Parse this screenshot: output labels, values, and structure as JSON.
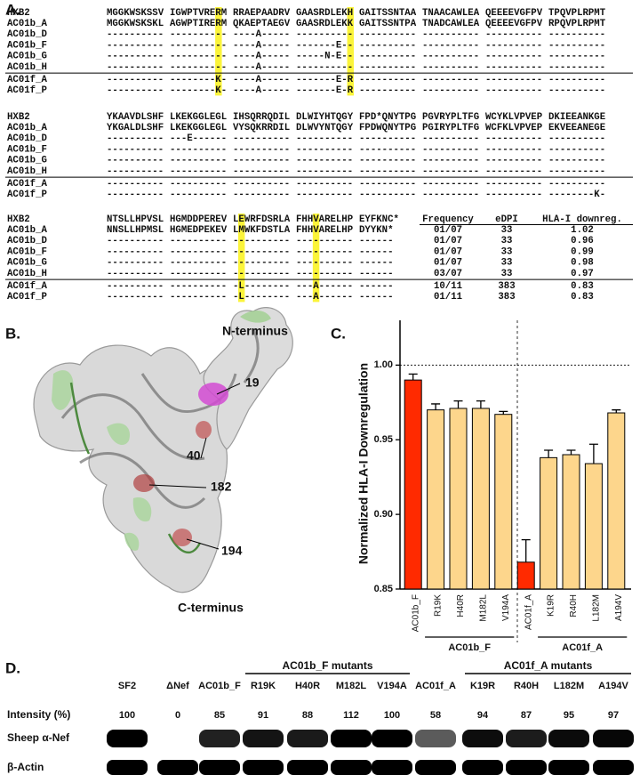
{
  "panel_a": {
    "label": "A.",
    "blocks": [
      {
        "rows": [
          {
            "name": "HXB2",
            "groups": [
              "MGGKWSKSSV",
              "IGWPTVRERM",
              "RRAEPAADRV",
              "GAASRDLEKH",
              "GAITSSNTAA",
              "TNAACAWLEA",
              "QEEEEVGFPV",
              "TPQVPLRPMT"
            ]
          },
          {
            "name": "AC01b_A",
            "groups": [
              "MGGKWSKSKL",
              "AGWPTIRERM",
              "QKAEPTAEGV",
              "GAASRDLEKK",
              "GAITSSNTPA",
              "TNADCAWLEA",
              "QEEEEVGFPV",
              "RPQVPLRPMT"
            ]
          },
          {
            "name": "AC01b_D",
            "groups": [
              "----------",
              "----------",
              "----A-----",
              "----------",
              "----------",
              "----------",
              "----------",
              "----------"
            ]
          },
          {
            "name": "AC01b_F",
            "groups": [
              "----------",
              "----------",
              "----A-----",
              "-------E--",
              "----------",
              "----------",
              "----------",
              "----------"
            ]
          },
          {
            "name": "AC01b_G",
            "groups": [
              "----------",
              "----------",
              "----A-----",
              "-----N-E--",
              "----------",
              "----------",
              "----------",
              "----------"
            ]
          },
          {
            "name": "AC01b_H",
            "groups": [
              "----------",
              "----------",
              "----A-----",
              "----------",
              "----------",
              "----------",
              "----------",
              "----------"
            ]
          },
          {
            "name": "AC01f_A",
            "groups": [
              "----------",
              "--------K-",
              "----A-----",
              "-------E-R",
              "----------",
              "----------",
              "----------",
              "----------"
            ]
          },
          {
            "name": "AC01f_P",
            "groups": [
              "----------",
              "--------K-",
              "----A-----",
              "-------E-R",
              "----------",
              "----------",
              "----------",
              "----------"
            ]
          }
        ]
      },
      {
        "rows": [
          {
            "name": "HXB2",
            "groups": [
              "YKAAVDLSHF",
              "LKEKGGLEGL",
              "IHSQRRQDIL",
              "DLWIYHTQGY",
              "FPD*QNYTPG",
              "PGVRYPLTFG",
              "WCYKLVPVEP",
              "DKIEEANKGE"
            ]
          },
          {
            "name": "AC01b_A",
            "groups": [
              "YKGALDLSHF",
              "LKEKGGLEGL",
              "VYSQKRRDIL",
              "DLWVYNTQGY",
              "FPDWQNYTPG",
              "PGIRYPLTFG",
              "WCFKLVPVEP",
              "EKVEEANEGE"
            ]
          },
          {
            "name": "AC01b_D",
            "groups": [
              "----------",
              "---E------",
              "----------",
              "----------",
              "----------",
              "----------",
              "----------",
              "----------"
            ]
          },
          {
            "name": "AC01b_F",
            "groups": [
              "----------",
              "----------",
              "----------",
              "----------",
              "----------",
              "----------",
              "----------",
              "----------"
            ]
          },
          {
            "name": "AC01b_G",
            "groups": [
              "----------",
              "----------",
              "----------",
              "----------",
              "----------",
              "----------",
              "----------",
              "----------"
            ]
          },
          {
            "name": "AC01b_H",
            "groups": [
              "----------",
              "----------",
              "----------",
              "----------",
              "----------",
              "----------",
              "----------",
              "----------"
            ]
          },
          {
            "name": "AC01f_A",
            "groups": [
              "----------",
              "----------",
              "----------",
              "----------",
              "----------",
              "----------",
              "----------",
              "----------"
            ]
          },
          {
            "name": "AC01f_P",
            "groups": [
              "----------",
              "----------",
              "----------",
              "----------",
              "----------",
              "----------",
              "----------",
              "--------K-"
            ]
          }
        ]
      },
      {
        "rows": [
          {
            "name": "HXB2",
            "groups": [
              "NTSLLHPVSL",
              "HGMDDPEREV",
              "LEWRFDSRLA",
              "FHHVARELHP",
              "EYFKNC*"
            ]
          },
          {
            "name": "AC01b_A",
            "groups": [
              "NNSLLHPMSL",
              "HGMEDPEKEV",
              "LMWKFDSTLA",
              "FHHVARELHP",
              "DYYKN*"
            ]
          },
          {
            "name": "AC01b_D",
            "groups": [
              "----------",
              "----------",
              "----------",
              "----------",
              "------"
            ]
          },
          {
            "name": "AC01b_F",
            "groups": [
              "----------",
              "----------",
              "----------",
              "----------",
              "------"
            ]
          },
          {
            "name": "AC01b_G",
            "groups": [
              "----------",
              "----------",
              "----------",
              "----------",
              "------"
            ]
          },
          {
            "name": "AC01b_H",
            "groups": [
              "----------",
              "----------",
              "----------",
              "----------",
              "------"
            ]
          },
          {
            "name": "AC01f_A",
            "groups": [
              "----------",
              "----------",
              "-L--------",
              "---A------",
              "------"
            ]
          },
          {
            "name": "AC01f_P",
            "groups": [
              "----------",
              "----------",
              "-L--------",
              "---A------",
              "------"
            ]
          }
        ]
      }
    ],
    "table": {
      "headers": [
        "Frequency",
        "eDPI",
        "HLA-I downreg."
      ],
      "rows": [
        [
          "01/07",
          33,
          1.02
        ],
        [
          "01/07",
          33,
          0.96
        ],
        [
          "01/07",
          33,
          0.99
        ],
        [
          "01/07",
          33,
          0.98
        ],
        [
          "03/07",
          33,
          0.97
        ],
        [
          "10/11",
          383,
          0.83
        ],
        [
          "01/11",
          383,
          0.83
        ]
      ]
    }
  },
  "panel_b": {
    "label": "B.",
    "labels": [
      "N-terminus",
      "19",
      "40",
      "182",
      "194",
      "C-terminus"
    ]
  },
  "chart_data": {
    "type": "bar",
    "label": "C.",
    "ylabel": "Normalized HLA-I Downregulation",
    "categories": [
      "AC01b_F",
      "R19K",
      "H40R",
      "M182L",
      "V194A",
      "AC01f_A",
      "K19R",
      "R40H",
      "L182M",
      "A194V"
    ],
    "values": [
      0.99,
      0.97,
      0.971,
      0.971,
      0.967,
      0.868,
      0.938,
      0.94,
      0.934,
      0.968
    ],
    "errors": [
      0.004,
      0.004,
      0.005,
      0.005,
      0.002,
      0.015,
      0.005,
      0.003,
      0.013,
      0.002
    ],
    "colors": [
      "#ff2a00",
      "#fdd68c",
      "#fdd68c",
      "#fdd68c",
      "#fdd68c",
      "#ff2a00",
      "#fdd68c",
      "#fdd68c",
      "#fdd68c",
      "#fdd68c"
    ],
    "groups": [
      "AC01b_F",
      "AC01f_A"
    ],
    "ylim": [
      0.85,
      1.03
    ],
    "yticks": [
      {
        "value": 0.85,
        "label": "0.85"
      },
      {
        "value": 0.9,
        "label": "0.90"
      },
      {
        "value": 0.95,
        "label": "0.95"
      },
      {
        "value": 1.0,
        "label": "1.00"
      }
    ],
    "reference_y": 1
  },
  "panel_d": {
    "label": "D.",
    "group_headers": [
      "AC01b_F mutants",
      "AC01f_A mutants"
    ],
    "lanes": [
      "SF2",
      "ΔNef",
      "AC01b_F",
      "R19K",
      "H40R",
      "M182L",
      "V194A",
      "AC01f_A",
      "K19R",
      "R40H",
      "L182M",
      "A194V"
    ],
    "row_labels": [
      "Intensity (%)",
      "Sheep α-Nef",
      "β-Actin"
    ],
    "intensity": [
      100,
      0,
      85,
      91,
      88,
      112,
      100,
      58,
      94,
      87,
      95,
      97
    ]
  }
}
